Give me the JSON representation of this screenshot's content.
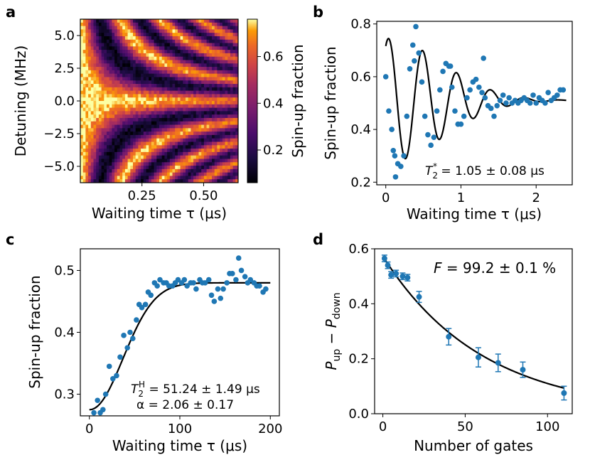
{
  "chart_data": [
    {
      "panel": "a",
      "type": "heatmap",
      "title": "",
      "xlabel": "Waiting time τ (μs)",
      "ylabel": "Detuning (MHz)",
      "xlim": [
        0.0,
        0.64
      ],
      "ylim": [
        -6.25,
        6.25
      ],
      "xticks": [
        0.25,
        0.5
      ],
      "xtick_labels": [
        "0.25",
        "0.50"
      ],
      "yticks": [
        5.0,
        2.5,
        0.0,
        -2.5,
        -5.0
      ],
      "ytick_labels": [
        "5.0",
        "2.5",
        "0.0",
        "−2.5",
        "−5.0"
      ],
      "colorbar": {
        "label": "Spin-up fraction",
        "range": [
          0.06,
          0.76
        ],
        "ticks": [
          0.6,
          0.4,
          0.2
        ],
        "tick_labels": [
          "0.6",
          "0.4",
          "0.2"
        ],
        "colormap": "inferno"
      },
      "model": "Ramsey fringes: P = 0.42 + 0.33·cos(2π·Δ·τ)·exp(−(τ/T2*)²)"
    },
    {
      "panel": "b",
      "type": "scatter",
      "title": "",
      "xlabel": "Waiting time τ (μs)",
      "ylabel": "Spin-up fraction",
      "xlim": [
        -0.12,
        2.48
      ],
      "ylim": [
        0.19,
        0.81
      ],
      "xticks": [
        0,
        1,
        2
      ],
      "xtick_labels": [
        "0",
        "1",
        "2"
      ],
      "yticks": [
        0.2,
        0.4,
        0.6,
        0.8
      ],
      "ytick_labels": [
        "0.2",
        "0.4",
        "0.6",
        "0.8"
      ],
      "annotation_main": "T",
      "annotation_sub": "2",
      "annotation_sup": "*",
      "annotation_value": " = 1.05 ± 0.08 μs",
      "series": [
        {
          "name": "data",
          "x": [
            0.0,
            0.04,
            0.08,
            0.12,
            0.16,
            0.2,
            0.24,
            0.28,
            0.32,
            0.36,
            0.4,
            0.44,
            0.48,
            0.52,
            0.56,
            0.6,
            0.64,
            0.68,
            0.72,
            0.76,
            0.8,
            0.84,
            0.88,
            0.92,
            0.96,
            1.0,
            1.04,
            1.08,
            1.12,
            1.16,
            1.2,
            1.24,
            1.28,
            1.32,
            1.36,
            1.4,
            1.44,
            1.48,
            1.52,
            1.56,
            1.6,
            1.64,
            1.68,
            1.72,
            1.76,
            1.8,
            1.84,
            1.88,
            1.92,
            1.96,
            2.0,
            2.04,
            2.08,
            2.12,
            2.16,
            2.2,
            2.24,
            2.28,
            2.32,
            2.36,
            0.1,
            0.13,
            0.38,
            0.86,
            1.3
          ],
          "y": [
            0.6,
            0.47,
            0.4,
            0.3,
            0.27,
            0.26,
            0.3,
            0.45,
            0.63,
            0.72,
            0.79,
            0.69,
            0.58,
            0.45,
            0.38,
            0.34,
            0.37,
            0.47,
            0.55,
            0.62,
            0.65,
            0.64,
            0.56,
            0.47,
            0.42,
            0.42,
            0.45,
            0.52,
            0.55,
            0.58,
            0.59,
            0.56,
            0.54,
            0.52,
            0.49,
            0.48,
            0.45,
            0.49,
            0.51,
            0.53,
            0.5,
            0.52,
            0.5,
            0.51,
            0.5,
            0.51,
            0.52,
            0.51,
            0.5,
            0.53,
            0.5,
            0.52,
            0.51,
            0.5,
            0.54,
            0.51,
            0.52,
            0.53,
            0.55,
            0.55,
            0.32,
            0.22,
            0.66,
            0.64,
            0.67
          ]
        },
        {
          "name": "fit",
          "model": "0.51 + 0.235·cos(2π·2.2·τ − 0.5)·exp(−(τ/1.05)²)"
        }
      ]
    },
    {
      "panel": "c",
      "type": "scatter",
      "title": "",
      "xlabel": "Waiting time τ (μs)",
      "ylabel": "Spin-up fraction",
      "xlim": [
        -10,
        210
      ],
      "ylim": [
        0.265,
        0.535
      ],
      "xticks": [
        0,
        100,
        200
      ],
      "xtick_labels": [
        "0",
        "100",
        "200"
      ],
      "yticks": [
        0.3,
        0.4,
        0.5
      ],
      "ytick_labels": [
        "0.3",
        "0.4",
        "0.5"
      ],
      "annotation1_main": "T",
      "annotation1_sub": "2",
      "annotation1_sup": "H",
      "annotation1_value": " = 51.24 ± 1.49 μs",
      "annotation2": "α = 2.06  ± 0.17",
      "series": [
        {
          "name": "data",
          "x": [
            5,
            9,
            12,
            15,
            18,
            22,
            26,
            30,
            34,
            38,
            42,
            45,
            48,
            52,
            55,
            58,
            62,
            65,
            68,
            72,
            75,
            78,
            82,
            85,
            88,
            92,
            95,
            98,
            102,
            105,
            108,
            112,
            115,
            118,
            122,
            125,
            128,
            132,
            135,
            138,
            142,
            145,
            148,
            152,
            155,
            158,
            162,
            165,
            168,
            172,
            175,
            178,
            182,
            185,
            188,
            192,
            195
          ],
          "y": [
            0.27,
            0.29,
            0.27,
            0.275,
            0.3,
            0.345,
            0.325,
            0.33,
            0.36,
            0.395,
            0.375,
            0.4,
            0.39,
            0.42,
            0.445,
            0.44,
            0.445,
            0.465,
            0.46,
            0.48,
            0.475,
            0.485,
            0.48,
            0.48,
            0.475,
            0.475,
            0.48,
            0.485,
            0.48,
            0.485,
            0.475,
            0.48,
            0.48,
            0.47,
            0.485,
            0.48,
            0.48,
            0.485,
            0.46,
            0.45,
            0.47,
            0.455,
            0.47,
            0.48,
            0.495,
            0.495,
            0.485,
            0.52,
            0.5,
            0.49,
            0.48,
            0.485,
            0.48,
            0.475,
            0.475,
            0.465,
            0.47
          ]
        },
        {
          "name": "fit",
          "model": "0.275 + 0.205·(1 − exp(−(τ/51.24)^2.06))"
        }
      ]
    },
    {
      "panel": "d",
      "type": "scatter",
      "title": "",
      "xlabel": "Number of gates",
      "ylabel_main": "P",
      "ylabel_sub1": "up",
      "ylabel_minus": " − ",
      "ylabel_sub2": "down",
      "xlim": [
        -5,
        115
      ],
      "ylim": [
        0.0,
        0.6
      ],
      "xticks": [
        0,
        50,
        100
      ],
      "xtick_labels": [
        "0",
        "50",
        "100"
      ],
      "yticks": [
        0.0,
        0.2,
        0.4,
        0.6
      ],
      "ytick_labels": [
        "0.0",
        "0.2",
        "0.4",
        "0.6"
      ],
      "annotation_main": "F",
      "annotation_value": " = 99.2 ± 0.1 %",
      "series": [
        {
          "name": "data",
          "x": [
            1,
            3,
            5,
            8,
            12,
            15,
            22,
            40,
            58,
            70,
            85,
            110
          ],
          "y": [
            0.565,
            0.54,
            0.505,
            0.51,
            0.5,
            0.495,
            0.425,
            0.28,
            0.205,
            0.185,
            0.16,
            0.075
          ],
          "yerr": [
            0.012,
            0.012,
            0.012,
            0.012,
            0.012,
            0.012,
            0.02,
            0.03,
            0.035,
            0.032,
            0.028,
            0.025
          ]
        },
        {
          "name": "fit",
          "model": "0.573·exp(−n/60.6)"
        }
      ]
    }
  ]
}
